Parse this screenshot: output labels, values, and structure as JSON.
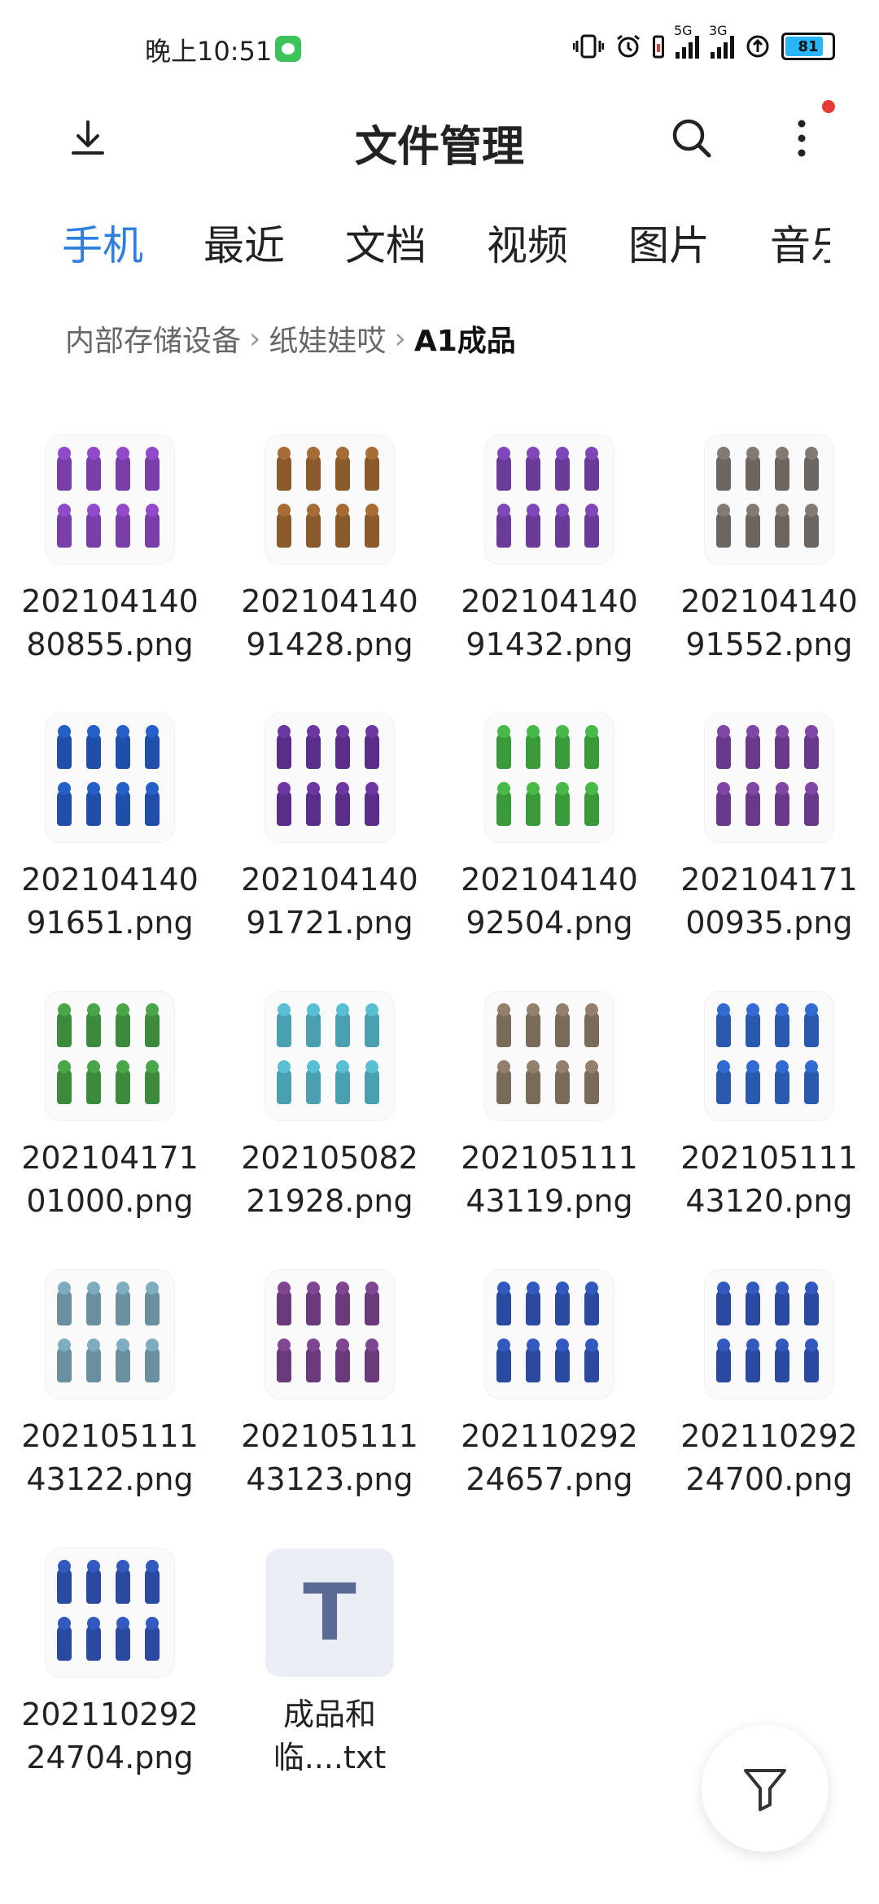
{
  "status_bar": {
    "time": "晚上10:51",
    "network_1": "5G",
    "network_2": "3G",
    "battery": "81"
  },
  "toolbar": {
    "title": "文件管理",
    "download_icon": "download-icon",
    "search_icon": "search-icon",
    "more_icon": "more-vertical-icon"
  },
  "tabs": [
    "手机",
    "最近",
    "文档",
    "视频",
    "图片",
    "音乐"
  ],
  "active_tab": "手机",
  "breadcrumb": {
    "items": [
      "内部存储设备",
      "纸娃娃哎"
    ],
    "current": "A1成品"
  },
  "files": [
    {
      "line1": "202104140",
      "line2": "80855.png",
      "color": "#7a3ea8"
    },
    {
      "line1": "202104140",
      "line2": "91428.png",
      "color": "#8a5a2b"
    },
    {
      "line1": "202104140",
      "line2": "91432.png",
      "color": "#6b3b9a"
    },
    {
      "line1": "202104140",
      "line2": "91552.png",
      "color": "#6d6660"
    },
    {
      "line1": "202104140",
      "line2": "91651.png",
      "color": "#1f4fa8"
    },
    {
      "line1": "202104140",
      "line2": "91721.png",
      "color": "#5a2e88"
    },
    {
      "line1": "202104140",
      "line2": "92504.png",
      "color": "#3a9a3a"
    },
    {
      "line1": "202104171",
      "line2": "00935.png",
      "color": "#6a3a8a"
    },
    {
      "line1": "202104171",
      "line2": "01000.png",
      "color": "#3c8a3c"
    },
    {
      "line1": "202105082",
      "line2": "21928.png",
      "color": "#4aa0b0"
    },
    {
      "line1": "202105111",
      "line2": "43119.png",
      "color": "#7a6a5a"
    },
    {
      "line1": "202105111",
      "line2": "43120.png",
      "color": "#2a5ab0"
    },
    {
      "line1": "202105111",
      "line2": "43122.png",
      "color": "#6a90a0"
    },
    {
      "line1": "202105111",
      "line2": "43123.png",
      "color": "#6a3a7a"
    },
    {
      "line1": "202110292",
      "line2": "24657.png",
      "color": "#2a4aa0"
    },
    {
      "line1": "202110292",
      "line2": "24700.png",
      "color": "#2a4aa0"
    },
    {
      "line1": "202110292",
      "line2": "24704.png",
      "color": "#2a4aa0"
    },
    {
      "line1": "成品和",
      "line2": "临....txt",
      "type": "txt",
      "glyph": "T"
    }
  ],
  "fab_icon": "filter-icon"
}
